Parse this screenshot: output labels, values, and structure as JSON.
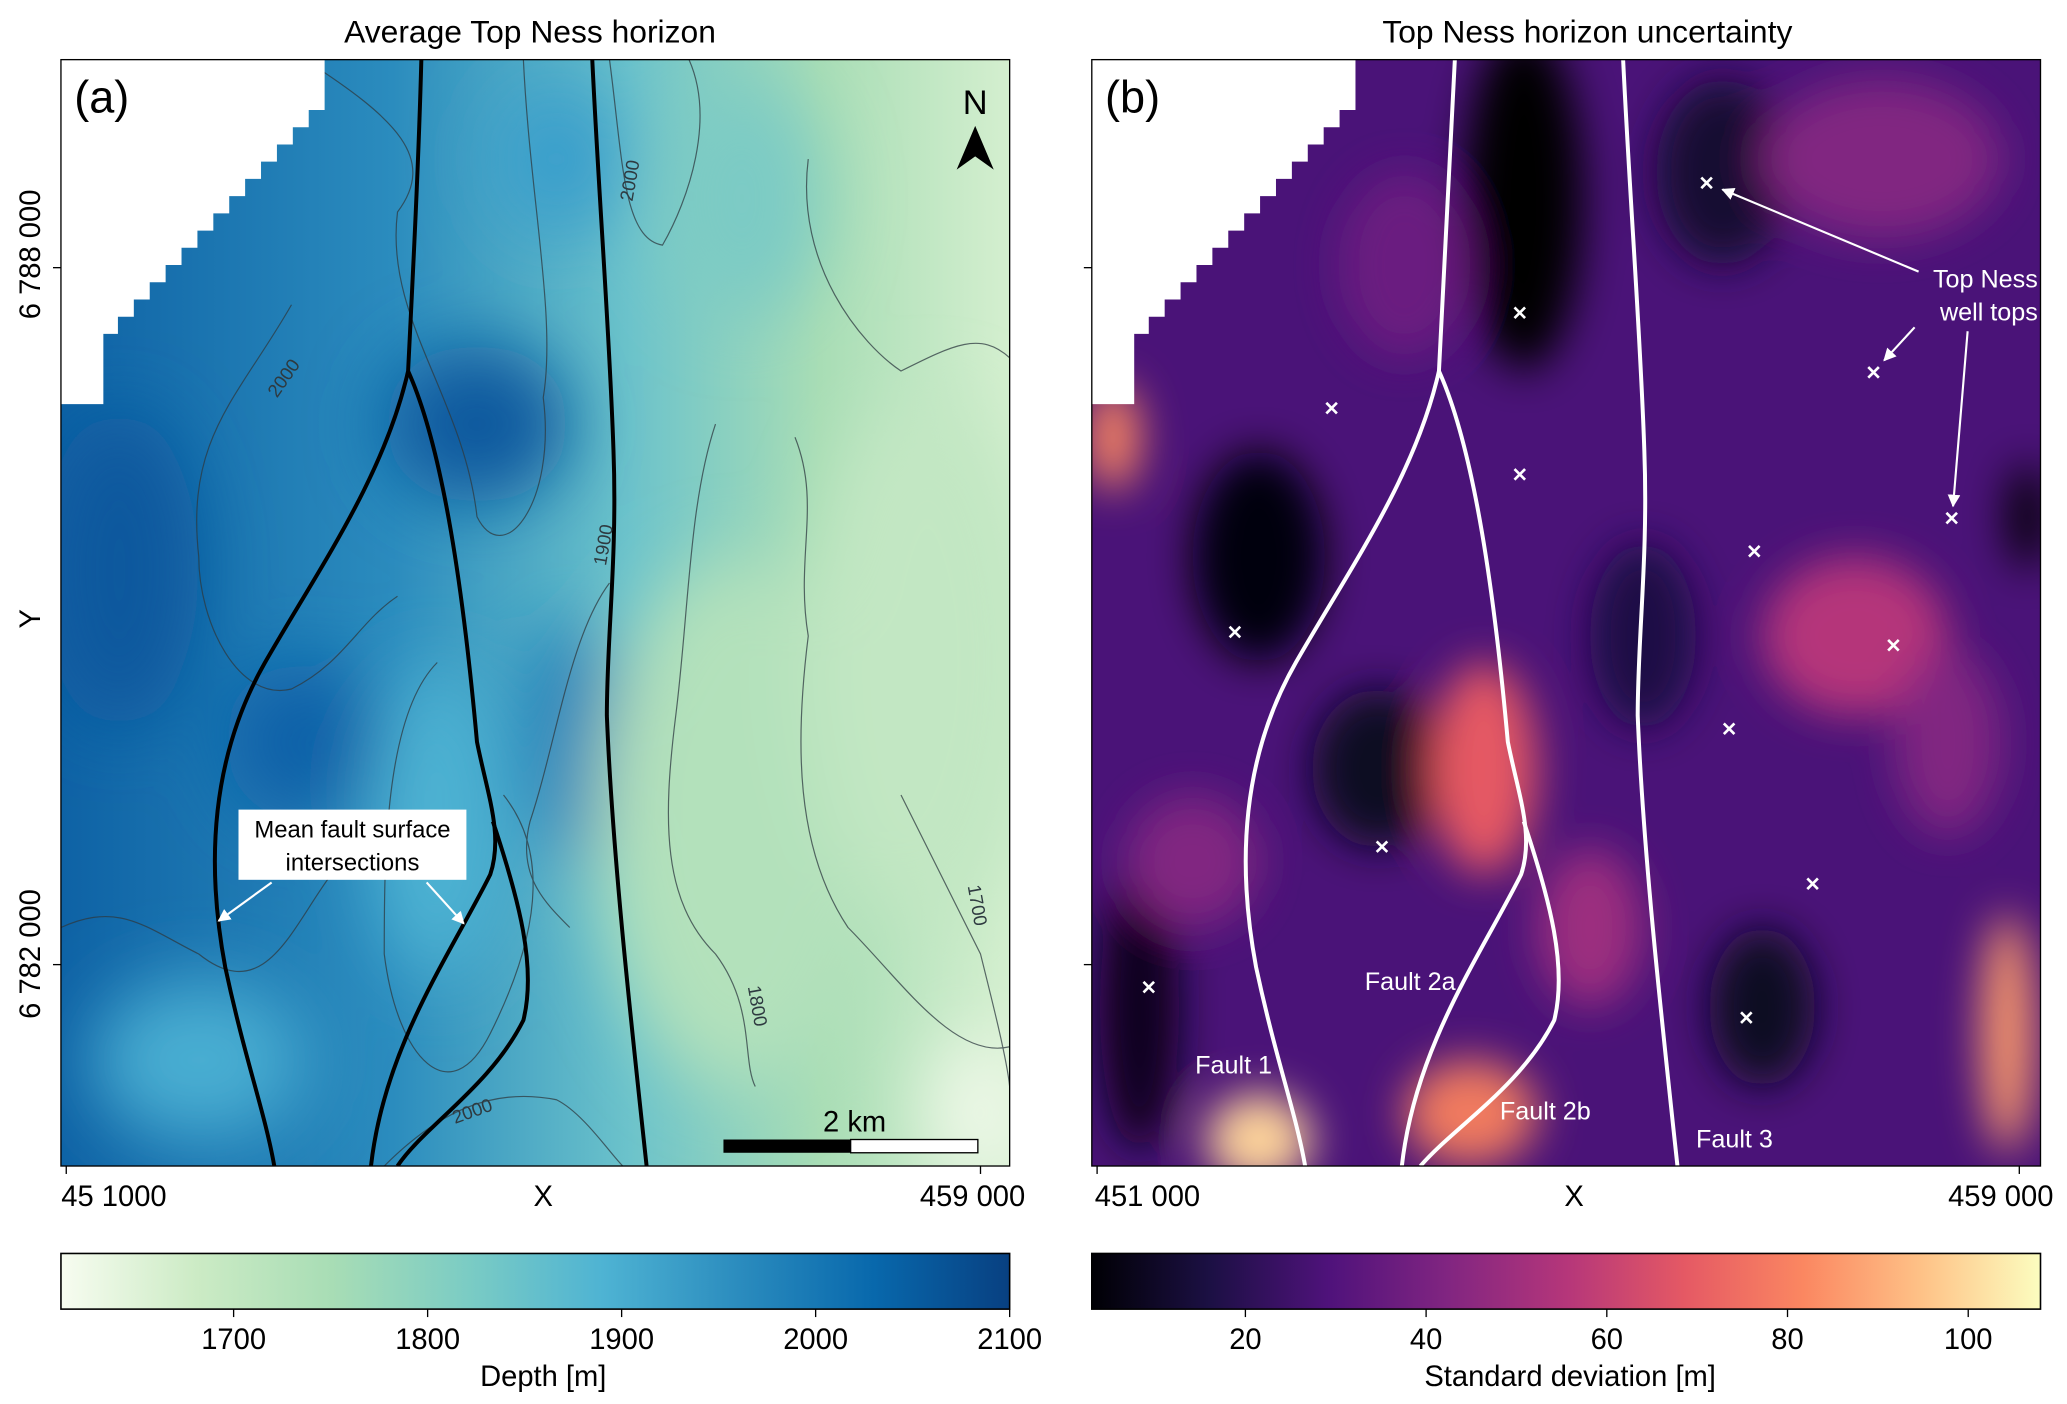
{
  "panels": [
    {
      "title": "Average Top Ness horizon",
      "label": "(a)",
      "x_ticks": [
        "45 1000",
        "459 000"
      ],
      "x_label": "X",
      "y_ticks": [
        "6 788 000",
        "6 782 000"
      ],
      "y_label": "Y",
      "north_label": "N",
      "scale_bar_label": "2 km",
      "annotation": [
        "Mean fault surface",
        "intersections"
      ],
      "contour_labels": [
        "2000",
        "2000",
        "1900",
        "1800",
        "1700",
        "2000"
      ],
      "colorbar": {
        "label": "Depth [m]",
        "ticks": [
          "1700",
          "1800",
          "1900",
          "2000",
          "2100"
        ],
        "range": [
          1611,
          2100
        ],
        "colormap": "YlGnBu",
        "colors": [
          "#f7fcf0",
          "#ccebc5",
          "#a8ddb5",
          "#7bccc4",
          "#4eb3d3",
          "#2b8cbe",
          "#0868ac",
          "#084081"
        ]
      },
      "fault_color": "#000000"
    },
    {
      "title": "Top Ness horizon uncertainty",
      "label": "(b)",
      "x_ticks": [
        "451 000",
        "459 000"
      ],
      "x_label": "X",
      "annotation": [
        "Top Ness",
        "well tops"
      ],
      "fault_labels": [
        "Fault 1",
        "Fault 2a",
        "Fault 2b",
        "Fault 3"
      ],
      "well_marker": "×",
      "well_count": 14,
      "colorbar": {
        "label": "Standard deviation [m]",
        "ticks": [
          "20",
          "40",
          "60",
          "80",
          "100"
        ],
        "range": [
          3,
          108
        ],
        "colormap": "magma",
        "colors": [
          "#000004",
          "#1c1044",
          "#4f127b",
          "#812581",
          "#b5367a",
          "#e55964",
          "#fb8761",
          "#fec287",
          "#fcfdbf"
        ]
      },
      "fault_color": "#ffffff"
    }
  ]
}
